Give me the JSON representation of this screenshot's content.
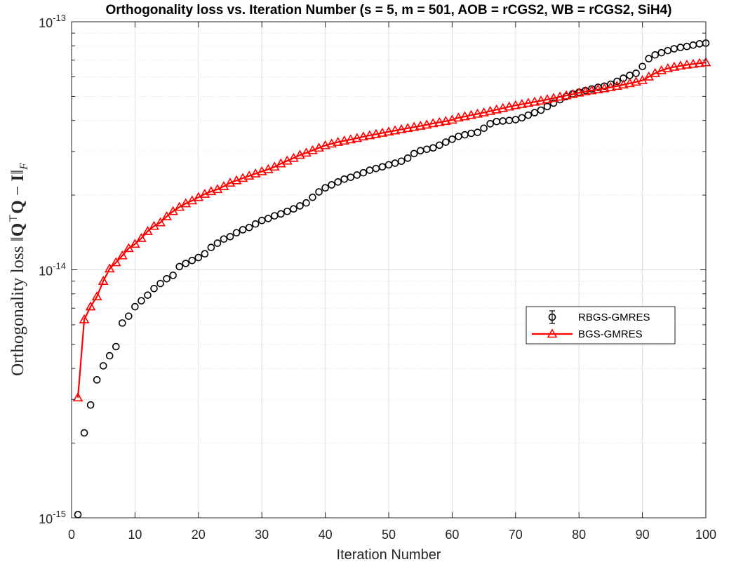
{
  "chart_data": {
    "type": "line",
    "title": "Orthogonality loss vs. Iteration Number (s = 5, m = 501, AOB = rCGS2, WB = rCGS2, SiH4)",
    "xlabel": "Iteration Number",
    "ylabel": "Orthogonality loss ||QᵀQ − I||F",
    "xlim": [
      0,
      100
    ],
    "ylim": [
      1e-15,
      1e-13
    ],
    "yscale": "log",
    "grid": true,
    "legend_position": "center-right",
    "x_ticks": [
      "0",
      "10",
      "20",
      "30",
      "40",
      "50",
      "60",
      "70",
      "80",
      "90",
      "100"
    ],
    "y_ticks": [
      {
        "base": "10",
        "exp": "-15",
        "value": 1e-15
      },
      {
        "base": "10",
        "exp": "-14",
        "value": 1e-14
      },
      {
        "base": "10",
        "exp": "-13",
        "value": 1e-13
      }
    ],
    "x": [
      1,
      2,
      3,
      4,
      5,
      6,
      7,
      8,
      9,
      10,
      11,
      12,
      13,
      14,
      15,
      16,
      17,
      18,
      19,
      20,
      21,
      22,
      23,
      24,
      25,
      26,
      27,
      28,
      29,
      30,
      31,
      32,
      33,
      34,
      35,
      36,
      37,
      38,
      39,
      40,
      41,
      42,
      43,
      44,
      45,
      46,
      47,
      48,
      49,
      50,
      51,
      52,
      53,
      54,
      55,
      56,
      57,
      58,
      59,
      60,
      61,
      62,
      63,
      64,
      65,
      66,
      67,
      68,
      69,
      70,
      71,
      72,
      73,
      74,
      75,
      76,
      77,
      78,
      79,
      80,
      81,
      82,
      83,
      84,
      85,
      86,
      87,
      88,
      89,
      90,
      91,
      92,
      93,
      94,
      95,
      96,
      97,
      98,
      99,
      100
    ],
    "series": [
      {
        "name": "RBGS-GMRES",
        "color": "#000000",
        "marker": "circle",
        "line": false,
        "values": [
          1.03e-15,
          2.2e-15,
          2.85e-15,
          3.6e-15,
          4.1e-15,
          4.5e-15,
          4.9e-15,
          6.1e-15,
          6.5e-15,
          7.1e-15,
          7.5e-15,
          7.9e-15,
          8.4e-15,
          8.8e-15,
          9.2e-15,
          9.5e-15,
          1.03e-14,
          1.06e-14,
          1.09e-14,
          1.12e-14,
          1.16e-14,
          1.23e-14,
          1.28e-14,
          1.33e-14,
          1.36e-14,
          1.41e-14,
          1.45e-14,
          1.48e-14,
          1.53e-14,
          1.58e-14,
          1.61e-14,
          1.65e-14,
          1.68e-14,
          1.72e-14,
          1.76e-14,
          1.81e-14,
          1.86e-14,
          1.96e-14,
          2.06e-14,
          2.14e-14,
          2.2e-14,
          2.26e-14,
          2.32e-14,
          2.36e-14,
          2.41e-14,
          2.46e-14,
          2.52e-14,
          2.56e-14,
          2.6e-14,
          2.65e-14,
          2.69e-14,
          2.74e-14,
          2.82e-14,
          2.94e-14,
          3.02e-14,
          3.06e-14,
          3.1e-14,
          3.18e-14,
          3.27e-14,
          3.36e-14,
          3.45e-14,
          3.5e-14,
          3.55e-14,
          3.58e-14,
          3.72e-14,
          3.88e-14,
          3.96e-14,
          3.98e-14,
          4e-14,
          4.03e-14,
          4.1e-14,
          4.2e-14,
          4.3e-14,
          4.4e-14,
          4.55e-14,
          4.7e-14,
          4.85e-14,
          5e-14,
          5.12e-14,
          5.2e-14,
          5.28e-14,
          5.36e-14,
          5.44e-14,
          5.5e-14,
          5.6e-14,
          5.75e-14,
          5.92e-14,
          6.08e-14,
          6.2e-14,
          6.6e-14,
          7.1e-14,
          7.35e-14,
          7.5e-14,
          7.65e-14,
          7.78e-14,
          7.88e-14,
          7.95e-14,
          8.05e-14,
          8.15e-14,
          8.2e-14
        ]
      },
      {
        "name": "BGS-GMRES",
        "color": "#ff0000",
        "marker": "triangle",
        "line": true,
        "values": [
          3.05e-15,
          6.3e-15,
          7.1e-15,
          7.8e-15,
          9e-15,
          1.01e-14,
          1.07e-14,
          1.14e-14,
          1.22e-14,
          1.27e-14,
          1.34e-14,
          1.43e-14,
          1.5e-14,
          1.55e-14,
          1.64e-14,
          1.72e-14,
          1.79e-14,
          1.85e-14,
          1.9e-14,
          1.96e-14,
          2.02e-14,
          2.07e-14,
          2.11e-14,
          2.17e-14,
          2.24e-14,
          2.29e-14,
          2.34e-14,
          2.39e-14,
          2.44e-14,
          2.49e-14,
          2.54e-14,
          2.6e-14,
          2.68e-14,
          2.75e-14,
          2.82e-14,
          2.9e-14,
          2.96e-14,
          3.03e-14,
          3.1e-14,
          3.17e-14,
          3.22e-14,
          3.27e-14,
          3.31e-14,
          3.35e-14,
          3.39e-14,
          3.44e-14,
          3.48e-14,
          3.52e-14,
          3.56e-14,
          3.6e-14,
          3.64e-14,
          3.68e-14,
          3.72e-14,
          3.76e-14,
          3.8e-14,
          3.84e-14,
          3.89e-14,
          3.93e-14,
          3.97e-14,
          4.02e-14,
          4.1e-14,
          4.15e-14,
          4.2e-14,
          4.25e-14,
          4.3e-14,
          4.36e-14,
          4.42e-14,
          4.48e-14,
          4.54e-14,
          4.6e-14,
          4.65e-14,
          4.7e-14,
          4.75e-14,
          4.8e-14,
          4.86e-14,
          4.92e-14,
          4.98e-14,
          5.04e-14,
          5.1e-14,
          5.17e-14,
          5.23e-14,
          5.28e-14,
          5.33e-14,
          5.38e-14,
          5.44e-14,
          5.5e-14,
          5.57e-14,
          5.64e-14,
          5.72e-14,
          5.8e-14,
          6e-14,
          6.2e-14,
          6.36e-14,
          6.48e-14,
          6.57e-14,
          6.64e-14,
          6.7e-14,
          6.75e-14,
          6.8e-14,
          6.85e-14
        ]
      }
    ]
  }
}
